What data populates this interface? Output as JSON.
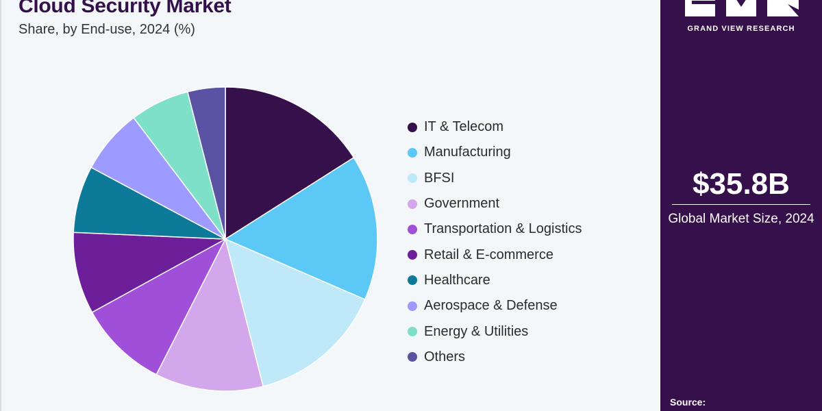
{
  "header": {
    "title": "Cloud Security Market",
    "subtitle": "Share, by End-use, 2024 (%)"
  },
  "chart_data": {
    "type": "pie",
    "title": "Cloud Security Market",
    "subtitle": "Share, by End-use, 2024 (%)",
    "legend_position": "right",
    "slices": [
      {
        "label": "IT & Telecom",
        "value": 16.0,
        "color": "#35104a"
      },
      {
        "label": "Manufacturing",
        "value": 15.5,
        "color": "#5bc8f5"
      },
      {
        "label": "BFSI",
        "value": 14.5,
        "color": "#bfe8f8"
      },
      {
        "label": "Government",
        "value": 11.5,
        "color": "#d3a7ec"
      },
      {
        "label": "Transportation & Logistics",
        "value": 9.5,
        "color": "#a04fd8"
      },
      {
        "label": "Retail & E-commerce",
        "value": 8.7,
        "color": "#6d1f9a"
      },
      {
        "label": "Healthcare",
        "value": 7.1,
        "color": "#0e7a9a"
      },
      {
        "label": "Aerospace & Defense",
        "value": 6.9,
        "color": "#9d9bff"
      },
      {
        "label": "Energy & Utilities",
        "value": 6.3,
        "color": "#7fe0c9"
      },
      {
        "label": "Others",
        "value": 4.0,
        "color": "#5a53a4"
      }
    ]
  },
  "sidebar": {
    "brand": "GRAND VIEW RESEARCH",
    "market_size": "$35.8B",
    "market_size_label": "Global Market Size, 2024",
    "source_label": "Source:"
  },
  "colors": {
    "brand_purple": "#35104a",
    "background": "#f3f7fa"
  }
}
